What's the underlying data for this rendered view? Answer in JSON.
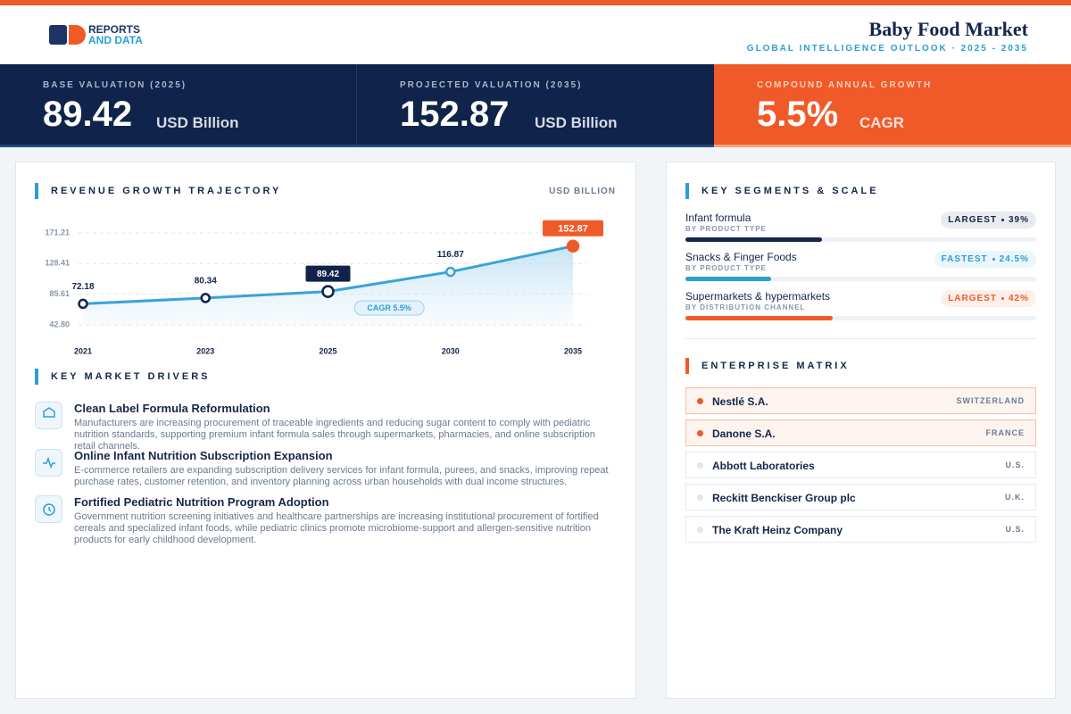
{
  "header": {
    "logo_top": "REPORTS",
    "logo_bottom": "AND DATA",
    "title": "Baby Food Market",
    "subtitle": "GLOBAL INTELLIGENCE OUTLOOK · 2025 - 2035"
  },
  "kpis": [
    {
      "label": "BASE VALUATION (2025)",
      "value": 89.42,
      "unit": "USD Billion"
    },
    {
      "label": "PROJECTED VALUATION (2035)",
      "value": 152.87,
      "unit": "USD Billion"
    },
    {
      "label": "COMPOUND ANNUAL GROWTH",
      "value": "5.5%",
      "unit": "CAGR"
    }
  ],
  "chart_data": {
    "type": "line",
    "title": "REVENUE GROWTH TRAJECTORY",
    "unit_label": "USD BILLION",
    "categories": [
      "2021",
      "2023",
      "2025",
      "2030",
      "2035"
    ],
    "values": [
      72.18,
      80.34,
      89.42,
      116.87,
      152.87
    ],
    "color": "#3aa3d8",
    "ylim": [
      42.8,
      171.21
    ],
    "yticks": [
      {
        "value": 42.8,
        "label": "42.80"
      },
      85.61,
      128.41,
      171.21
    ],
    "grid": true,
    "annotation": "CAGR 5.5%"
  },
  "drivers_title": "KEY MARKET DRIVERS",
  "drivers": [
    {
      "title": "Clean Label Formula Reformulation",
      "text": "Manufacturers are increasing procurement of traceable ingredients and reducing sugar content to comply with pediatric nutrition standards, supporting premium infant formula sales through supermarkets, pharmacies, and online subscription retail channels."
    },
    {
      "title": "Online Infant Nutrition Subscription Expansion",
      "text": "E-commerce retailers are expanding subscription delivery services for infant formula, purees, and snacks, improving repeat purchase rates, customer retention, and inventory planning across urban households with dual income structures."
    },
    {
      "title": "Fortified Pediatric Nutrition Program Adoption",
      "text": "Government nutrition screening initiatives and healthcare partnerships are increasing institutional procurement of fortified cereals and specialized infant foods, while pediatric clinics promote microbiome-support and allergen-sensitive nutrition products for early childhood development."
    }
  ],
  "segments_title": "KEY SEGMENTS & SCALE",
  "segments": [
    {
      "name": "Infant formula",
      "category": "BY PRODUCT TYPE",
      "badge": "LARGEST",
      "share": 39,
      "share_label": "39%",
      "color": "#14264a"
    },
    {
      "name": "Snacks & Finger Foods",
      "category": "BY PRODUCT TYPE",
      "badge": "FASTEST",
      "share": 24.5,
      "share_label": "24.5%",
      "color": "#2a9fd6"
    },
    {
      "name": "Supermarkets & hypermarkets",
      "category": "BY DISTRIBUTION CHANNEL",
      "badge": "LARGEST",
      "share": 42,
      "share_label": "42%",
      "color": "#f05a28"
    }
  ],
  "enterprises_title": "ENTERPRISE MATRIX",
  "enterprises": [
    {
      "name": "Nestlé S.A.",
      "country": "SWITZERLAND",
      "highlighted": true
    },
    {
      "name": "Danone S.A.",
      "country": "FRANCE",
      "highlighted": true
    },
    {
      "name": "Abbott Laboratories",
      "country": "U.S.",
      "highlighted": false
    },
    {
      "name": "Reckitt Benckiser Group plc",
      "country": "U.K.",
      "highlighted": false
    },
    {
      "name": "The Kraft Heinz Company",
      "country": "U.S.",
      "highlighted": false
    }
  ]
}
